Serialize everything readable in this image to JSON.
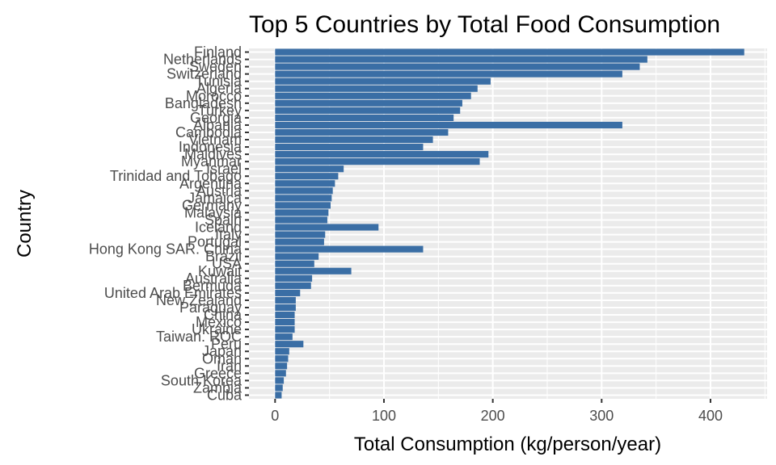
{
  "chart_data": {
    "type": "bar",
    "orientation": "horizontal",
    "title": "Top 5 Countries by Total Food Consumption",
    "xlabel": "Total Consumption (kg/person/year)",
    "ylabel": "Country",
    "xlim": [
      -24,
      452
    ],
    "xticks": [
      0,
      100,
      200,
      300,
      400
    ],
    "grid": true,
    "bar_color": "#3A6EA5",
    "panel_color": "#EBEBEB",
    "categories": [
      "Finland",
      "Netherlands",
      "Sweden",
      "Switzerland",
      "Tunisia",
      "Algeria",
      "Morocco",
      "Bangladesh",
      "Turkey",
      "Georgia",
      "Albania",
      "Cambodia",
      "Vietnam",
      "Indonesia",
      "Maldives",
      "Myanmar",
      "Israel",
      "Trinidad and Tobago",
      "Argentina",
      "Austria",
      "Jamaica",
      "Germany",
      "Malaysia",
      "Spain",
      "Iceland",
      "Italy",
      "Portugal",
      "Hong Kong SAR. China",
      "Brazil",
      "USA",
      "Kuwait",
      "Australia",
      "Bermuda",
      "United Arab Emirates",
      "New Zealand",
      "Paraguay",
      "China",
      "Mexico",
      "Ukraine",
      "Taiwan. ROC",
      "Peru",
      "Japan",
      "Oman",
      "Iran",
      "Greece",
      "South Korea",
      "Zambia",
      "Cuba"
    ],
    "values": [
      431,
      342,
      335,
      319,
      198,
      186,
      180,
      172,
      170,
      164,
      319,
      159,
      145,
      136,
      196,
      188,
      63,
      58,
      55,
      53,
      52,
      51,
      49,
      48,
      95,
      46,
      45,
      136,
      40,
      36,
      70,
      34,
      33,
      23,
      19,
      19,
      18,
      18,
      18,
      16,
      26,
      13,
      12,
      11,
      10,
      8,
      7,
      6
    ]
  }
}
